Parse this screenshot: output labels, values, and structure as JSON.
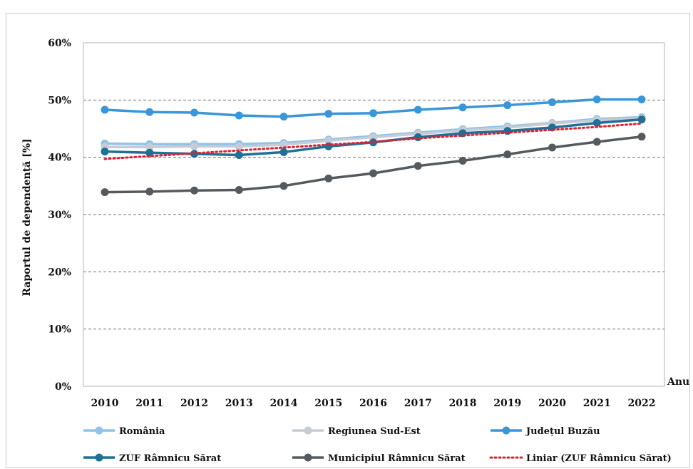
{
  "chart_data": {
    "type": "line",
    "xlabel": "Anu",
    "ylabel": "Raportul de dependență [%]",
    "ylim": [
      0,
      60
    ],
    "yticks": [
      "0%",
      "10%",
      "20%",
      "30%",
      "40%",
      "50%",
      "60%"
    ],
    "grid": "horizontal dashed",
    "legend_position": "bottom",
    "categories": [
      "2010",
      "2011",
      "2012",
      "2013",
      "2014",
      "2015",
      "2016",
      "2017",
      "2018",
      "2019",
      "2020",
      "2021",
      "2022"
    ],
    "series": [
      {
        "name": "România",
        "color": "#8fc3e8",
        "style": "line-marker",
        "values": [
          42.4,
          42.3,
          42.3,
          42.3,
          42.5,
          43.1,
          43.7,
          44.3,
          44.9,
          45.4,
          46.0,
          46.7,
          47.0
        ]
      },
      {
        "name": "Regiunea Sud-Est",
        "color": "#c6cbd6",
        "style": "line-marker",
        "values": [
          41.8,
          41.8,
          41.9,
          41.9,
          42.2,
          42.9,
          43.5,
          44.1,
          44.7,
          45.2,
          45.9,
          46.5,
          46.8
        ]
      },
      {
        "name": "Județul Buzău",
        "color": "#3a96d9",
        "style": "line-marker",
        "values": [
          48.3,
          47.9,
          47.8,
          47.3,
          47.1,
          47.6,
          47.7,
          48.3,
          48.7,
          49.1,
          49.6,
          50.1,
          50.1
        ]
      },
      {
        "name": "ZUF Râmnicu Sărat",
        "color": "#1f6f96",
        "style": "line-marker",
        "values": [
          41.0,
          40.8,
          40.6,
          40.4,
          40.9,
          41.9,
          42.6,
          43.5,
          44.2,
          44.6,
          45.2,
          46.0,
          46.6
        ]
      },
      {
        "name": "Municipiul Râmnicu Sărat",
        "color": "#555a5f",
        "style": "line-marker",
        "values": [
          33.9,
          34.0,
          34.2,
          34.3,
          35.0,
          36.3,
          37.2,
          38.5,
          39.4,
          40.5,
          41.7,
          42.7,
          43.6
        ]
      },
      {
        "name": "Liniar (ZUF Râmnicu Sărat)",
        "color": "#e0202e",
        "style": "dotted",
        "values": [
          39.7,
          40.2,
          40.7,
          41.2,
          41.7,
          42.2,
          42.7,
          43.3,
          43.8,
          44.3,
          44.8,
          45.3,
          45.9
        ]
      }
    ]
  }
}
